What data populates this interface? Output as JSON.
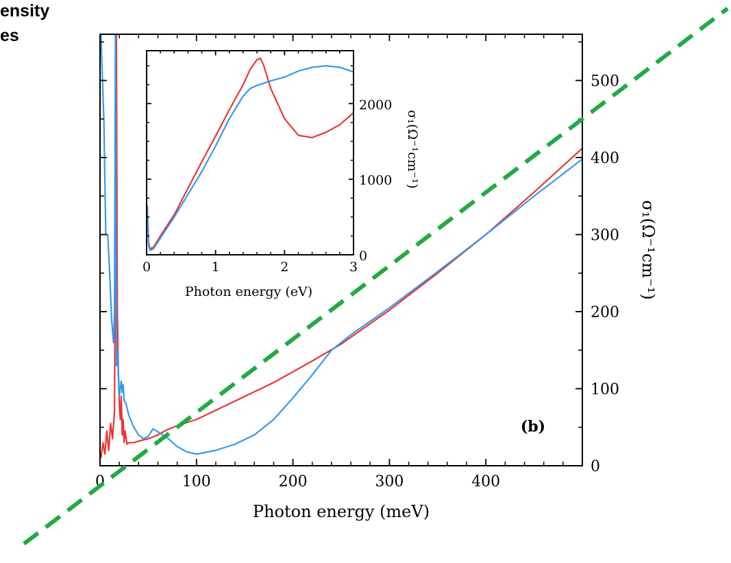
{
  "slide": {
    "line1": "ensity",
    "line2": "es"
  },
  "colors": {
    "red": "#ee3333",
    "blue": "#3399ee",
    "guide": "#22aa44",
    "axis": "#000000"
  },
  "chart_data": [
    {
      "type": "line",
      "name": "main",
      "xlabel": "Photon energy (meV)",
      "ylabel": "σ₁(Ω⁻¹cm⁻¹)",
      "xlim": [
        0,
        500
      ],
      "ylim": [
        0,
        560
      ],
      "xticks": [
        0,
        100,
        200,
        300,
        400
      ],
      "xtick_labels": [
        "0",
        "100",
        "200",
        "300",
        "400"
      ],
      "yticks": [
        0,
        100,
        200,
        300,
        400,
        500
      ],
      "ytick_labels": [
        "0",
        "100",
        "200",
        "300",
        "400",
        "500"
      ],
      "y_axis_side": "right",
      "panel_label": "(b)",
      "series": [
        {
          "color": "#ee3333",
          "x": [
            1,
            3,
            5,
            7,
            9,
            11,
            13,
            15,
            16,
            17,
            18,
            19,
            20,
            21,
            22,
            23,
            24,
            25,
            26,
            28,
            30,
            35,
            40,
            50,
            60,
            70,
            80,
            100,
            120,
            150,
            180,
            200,
            220,
            250,
            300,
            350,
            400,
            450,
            500
          ],
          "y": [
            10,
            30,
            15,
            45,
            20,
            55,
            35,
            70,
            300,
            560,
            200,
            120,
            80,
            60,
            90,
            40,
            60,
            30,
            45,
            28,
            30,
            30,
            32,
            35,
            40,
            47,
            52,
            60,
            72,
            90,
            108,
            122,
            136,
            158,
            202,
            250,
            300,
            355,
            412
          ]
        },
        {
          "color": "#3399ee",
          "x": [
            1,
            2,
            4,
            6,
            8,
            10,
            12,
            14,
            15,
            16,
            17,
            18,
            19,
            20,
            21,
            22,
            23,
            24,
            25,
            27,
            30,
            35,
            40,
            45,
            50,
            55,
            60,
            70,
            80,
            90,
            100,
            120,
            140,
            160,
            180,
            200,
            220,
            240,
            260,
            300,
            350,
            400,
            450,
            500
          ],
          "y": [
            560,
            520,
            450,
            300,
            300,
            250,
            190,
            160,
            200,
            560,
            130,
            150,
            120,
            90,
            100,
            110,
            95,
            105,
            85,
            80,
            65,
            50,
            40,
            35,
            38,
            48,
            44,
            36,
            25,
            18,
            15,
            20,
            28,
            40,
            60,
            88,
            118,
            150,
            170,
            205,
            252,
            300,
            350,
            398
          ]
        }
      ],
      "annotation_line": {
        "type": "dashed",
        "color": "#22aa44",
        "x": [
          -25,
          500
        ],
        "y": [
          -50,
          450
        ]
      }
    },
    {
      "type": "line",
      "name": "inset",
      "xlabel": "Photon energy (eV)",
      "ylabel": "σ₁(Ω⁻¹cm⁻¹)",
      "xlim": [
        0,
        3
      ],
      "ylim": [
        0,
        2700
      ],
      "xticks": [
        0,
        1,
        2,
        3
      ],
      "xtick_labels": [
        "0",
        "1",
        "2",
        "3"
      ],
      "yticks": [
        0,
        1000,
        2000
      ],
      "ytick_labels": [
        "0",
        "1000",
        "2000"
      ],
      "y_axis_side": "right",
      "series": [
        {
          "color": "#ee3333",
          "x": [
            0.01,
            0.03,
            0.05,
            0.1,
            0.2,
            0.4,
            0.6,
            0.8,
            1.0,
            1.2,
            1.4,
            1.5,
            1.6,
            1.65,
            1.7,
            1.8,
            2.0,
            2.2,
            2.4,
            2.6,
            2.8,
            3.0
          ],
          "y": [
            650,
            150,
            80,
            100,
            250,
            530,
            880,
            1230,
            1570,
            1920,
            2250,
            2450,
            2580,
            2600,
            2500,
            2200,
            1800,
            1580,
            1550,
            1620,
            1720,
            1880
          ]
        },
        {
          "color": "#3399ee",
          "x": [
            0.01,
            0.03,
            0.05,
            0.1,
            0.2,
            0.4,
            0.6,
            0.8,
            1.0,
            1.2,
            1.4,
            1.5,
            1.6,
            1.8,
            2.0,
            2.2,
            2.4,
            2.6,
            2.8,
            3.0
          ],
          "y": [
            600,
            120,
            60,
            80,
            220,
            500,
            800,
            1100,
            1440,
            1800,
            2100,
            2200,
            2240,
            2300,
            2350,
            2430,
            2480,
            2500,
            2480,
            2420
          ]
        }
      ]
    }
  ]
}
